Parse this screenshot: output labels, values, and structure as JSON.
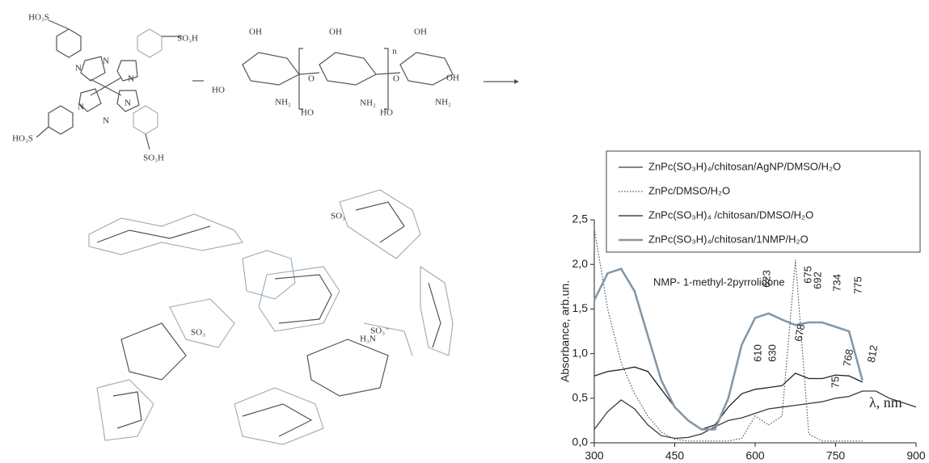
{
  "structures": {
    "labels": [
      "HO₃S",
      "SO₃H",
      "HO₃S",
      "SO₃H",
      "N",
      "N",
      "N",
      "N",
      "N",
      "N",
      "OH",
      "OH",
      "OH",
      "HO",
      "NH₂",
      "O",
      "HO",
      "NH₂",
      "O",
      "HO",
      "NH₂",
      "OH",
      "n",
      "SO₃",
      "SO₃⁻",
      "H₃N",
      "SO₃"
    ]
  },
  "chart_data": {
    "type": "line",
    "xlabel": "λ, nm",
    "ylabel": "Absorbance, arb.un.",
    "x": [
      300,
      325,
      350,
      375,
      400,
      425,
      450,
      475,
      500,
      525,
      550,
      575,
      600,
      625,
      650,
      675,
      700,
      725,
      750,
      775,
      800,
      825,
      850,
      875,
      900
    ],
    "series": [
      {
        "name": "ZnPc(SO₃H)₄/chitosan/AgNP/DMSO/H₂O",
        "color": "#3a3a3a",
        "style": "solid",
        "values": [
          0.15,
          0.35,
          0.48,
          0.38,
          0.2,
          0.08,
          0.05,
          0.06,
          0.1,
          0.18,
          0.25,
          0.28,
          0.33,
          0.38,
          0.4,
          0.42,
          0.44,
          0.46,
          0.5,
          0.52,
          0.58,
          0.58,
          0.5,
          0.45,
          0.4
        ]
      },
      {
        "name": "ZnPc/DMSO/H₂O",
        "color": "#555555",
        "style": "dotted",
        "values": [
          2.4,
          1.5,
          0.9,
          0.55,
          0.3,
          0.12,
          0.04,
          0.02,
          0.02,
          0.02,
          0.02,
          0.05,
          0.3,
          0.2,
          0.3,
          2.05,
          0.1,
          0.02,
          0.02,
          0.02,
          0.02,
          null,
          null,
          null,
          null
        ]
      },
      {
        "name": "ZnPc(SO₃H)₄ /chitosan/DMSO/H₂O",
        "color": "#222222",
        "style": "solid",
        "values": [
          0.75,
          0.8,
          0.82,
          0.85,
          0.8,
          0.6,
          0.4,
          0.25,
          0.15,
          0.2,
          0.4,
          0.55,
          0.6,
          0.62,
          0.64,
          0.78,
          0.72,
          0.72,
          0.76,
          0.75,
          0.68,
          null,
          null,
          null,
          null
        ]
      },
      {
        "name": "ZnPc(SO₃H)₄/chitosan/1NMP/H₂O",
        "color": "#8697a6",
        "style": "thick",
        "values": [
          1.6,
          1.9,
          1.95,
          1.7,
          1.2,
          0.7,
          0.4,
          0.25,
          0.15,
          0.15,
          0.5,
          1.1,
          1.4,
          1.45,
          1.38,
          1.32,
          1.35,
          1.35,
          1.3,
          1.25,
          0.7,
          null,
          null,
          null,
          null
        ]
      }
    ],
    "xlim": [
      300,
      900
    ],
    "ylim": [
      0,
      2.5
    ],
    "xticks": [
      300,
      450,
      600,
      750,
      900
    ],
    "yticks": [
      {
        "value": 0,
        "label": "0,0"
      },
      {
        "value": 0.5,
        "label": "0,5"
      },
      {
        "value": 1,
        "label": "1,0"
      },
      {
        "value": 1.5,
        "label": "1,5"
      },
      {
        "value": 2,
        "label": "2,0"
      },
      {
        "value": 2.5,
        "label": "2,5"
      }
    ],
    "annotations": [
      "NMP- 1-methyl-2pyrrolidone",
      "623",
      "675",
      "692",
      "734",
      "775",
      "610",
      "630",
      "678",
      "75",
      "768",
      "812"
    ]
  }
}
